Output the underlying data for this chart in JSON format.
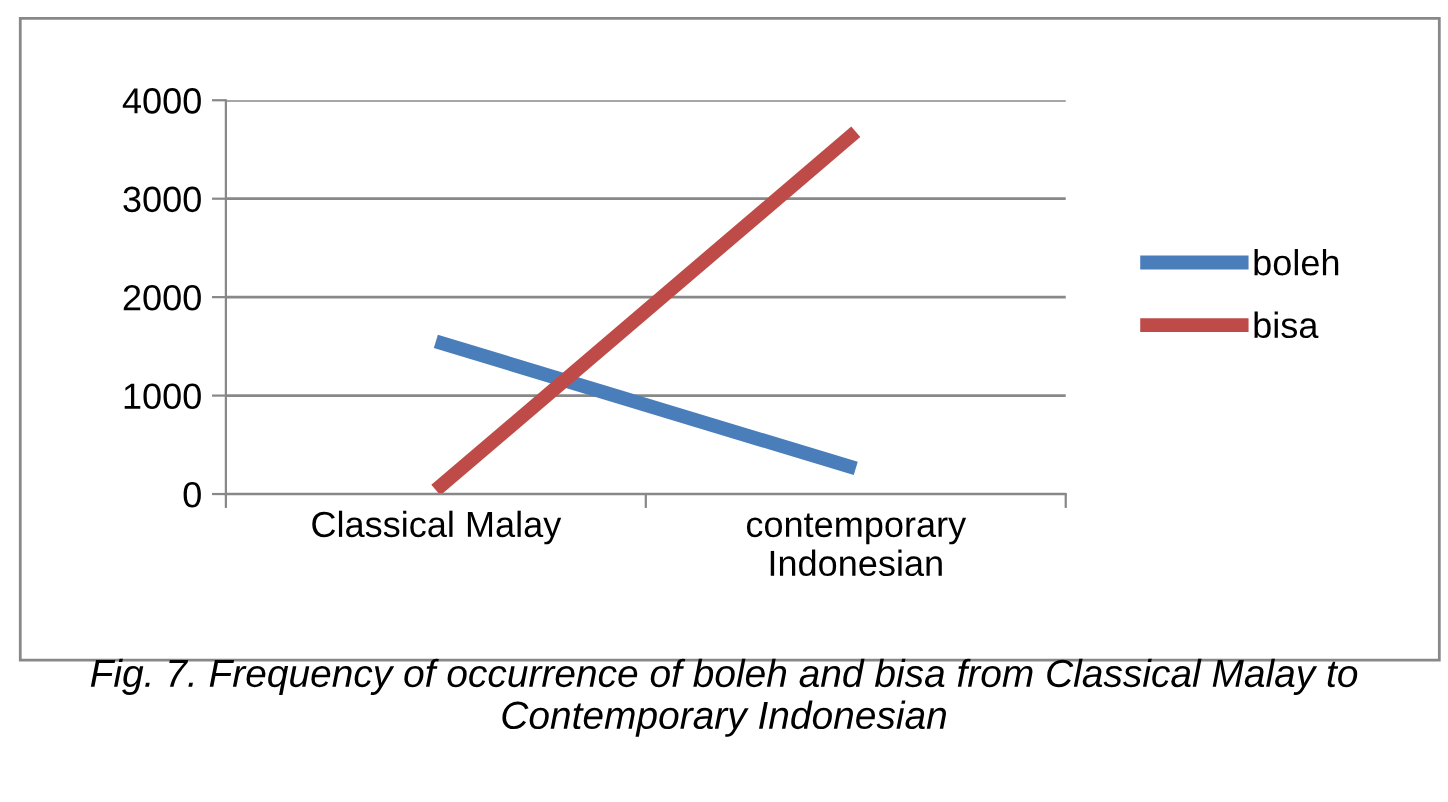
{
  "chart_data": {
    "type": "line",
    "categories": [
      "Classical Malay",
      "contemporary\nIndonesian"
    ],
    "series": [
      {
        "name": "boleh",
        "color": "#4a7ebb",
        "values": [
          1550,
          260
        ]
      },
      {
        "name": "bisa",
        "color": "#be4b48",
        "values": [
          40,
          3680
        ]
      }
    ],
    "ylim": [
      0,
      4000
    ],
    "yticks": [
      0,
      1000,
      2000,
      3000,
      4000
    ],
    "grid": "y",
    "legend": "right",
    "marker": "none",
    "line_style": "solid",
    "annotations": [
      "Fig. 7. Frequency of occurrence of boleh and bisa from Classical Malay to Contemporary Indonesian"
    ]
  }
}
